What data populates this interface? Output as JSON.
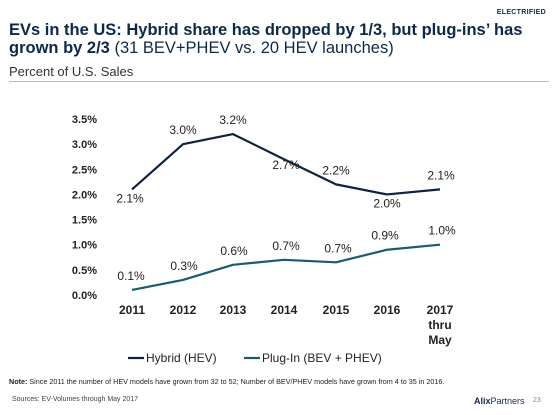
{
  "header_tag": "ELECTRIFIED",
  "title_bold": "EVs in the US: Hybrid share has dropped by 1/3, but plug-ins’ has grown by 2/3",
  "title_rest": " (31 BEV+PHEV vs. 20 HEV launches)",
  "subtitle": "Percent of U.S. Sales",
  "chart_data": {
    "type": "line",
    "x": [
      "2011",
      "2012",
      "2013",
      "2014",
      "2015",
      "2016",
      [
        "2017",
        "thru",
        "May"
      ]
    ],
    "ylim": [
      0,
      3.5
    ],
    "yticks": [
      "0.0%",
      "0.5%",
      "1.0%",
      "1.5%",
      "2.0%",
      "2.5%",
      "3.0%",
      "3.5%"
    ],
    "grid": false,
    "legend_position": "bottom",
    "series": [
      {
        "name": "Hybrid (HEV)",
        "color": "#0d2340",
        "values": [
          2.1,
          3.0,
          3.2,
          2.7,
          2.2,
          2.0,
          2.1
        ],
        "labels": [
          "2.1%",
          "3.0%",
          "3.2%",
          "2.7%",
          "2.2%",
          "2.0%",
          "2.1%"
        ]
      },
      {
        "name": "Plug-In (BEV + PHEV)",
        "color": "#1c5b6e",
        "values": [
          0.1,
          0.3,
          0.6,
          0.7,
          0.65,
          0.9,
          1.0
        ],
        "labels": [
          "0.1%",
          "0.3%",
          "0.6%",
          "0.7%",
          "0.7%",
          "0.9%",
          "1.0%"
        ]
      }
    ]
  },
  "note_label": "Note:",
  "note_text": " Since 2011 the number of HEV models have grown from 32 to 52; Number of BEV/PHEV models have grown from 4 to 35 in 2016.",
  "source": "Sources: EV-Volumes through May 2017",
  "logo_a": "Alix",
  "logo_b": "Partners",
  "page_number": "23"
}
